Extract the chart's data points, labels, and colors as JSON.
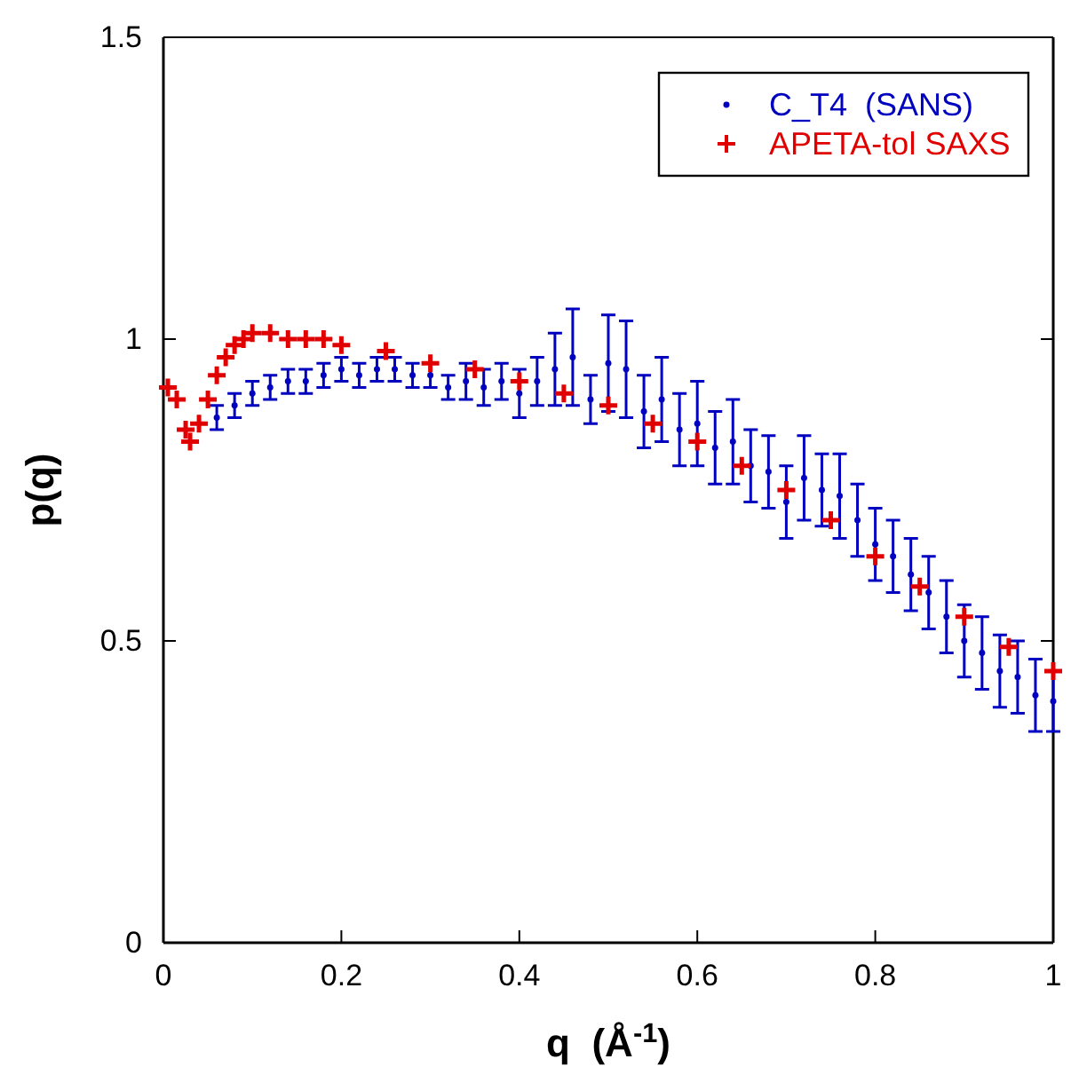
{
  "chart_data": {
    "type": "scatter",
    "xlabel": "q  (Å$^{-1}$)",
    "ylabel": "p(q)",
    "xlim": [
      0,
      1
    ],
    "ylim": [
      0,
      1.5
    ],
    "xticks": [
      0,
      0.2,
      0.4,
      0.6,
      0.8,
      1
    ],
    "yticks": [
      0,
      0.5,
      1,
      1.5
    ],
    "grid": false,
    "legend": "top right",
    "series": [
      {
        "name": "C_T4  (SANS)",
        "color": "#0000c0",
        "marker": "circle",
        "x": [
          0.06,
          0.08,
          0.1,
          0.12,
          0.14,
          0.16,
          0.18,
          0.2,
          0.22,
          0.24,
          0.26,
          0.28,
          0.3,
          0.32,
          0.34,
          0.36,
          0.38,
          0.4,
          0.42,
          0.44,
          0.46,
          0.48,
          0.5,
          0.52,
          0.54,
          0.56,
          0.58,
          0.6,
          0.62,
          0.64,
          0.66,
          0.68,
          0.7,
          0.72,
          0.74,
          0.76,
          0.78,
          0.8,
          0.82,
          0.84,
          0.86,
          0.88,
          0.9,
          0.92,
          0.94,
          0.96,
          0.98,
          1.0
        ],
        "values": [
          0.87,
          0.89,
          0.91,
          0.92,
          0.93,
          0.93,
          0.94,
          0.95,
          0.94,
          0.95,
          0.95,
          0.94,
          0.94,
          0.92,
          0.93,
          0.92,
          0.93,
          0.91,
          0.93,
          0.95,
          0.97,
          0.9,
          0.96,
          0.95,
          0.88,
          0.9,
          0.85,
          0.86,
          0.82,
          0.83,
          0.79,
          0.78,
          0.73,
          0.77,
          0.75,
          0.74,
          0.7,
          0.66,
          0.64,
          0.61,
          0.58,
          0.54,
          0.5,
          0.48,
          0.45,
          0.44,
          0.41,
          0.4
        ],
        "errors": [
          0.02,
          0.02,
          0.02,
          0.02,
          0.02,
          0.02,
          0.02,
          0.02,
          0.02,
          0.02,
          0.02,
          0.02,
          0.02,
          0.02,
          0.03,
          0.03,
          0.03,
          0.04,
          0.04,
          0.06,
          0.08,
          0.04,
          0.08,
          0.08,
          0.06,
          0.07,
          0.06,
          0.07,
          0.06,
          0.07,
          0.06,
          0.06,
          0.06,
          0.07,
          0.06,
          0.07,
          0.06,
          0.06,
          0.06,
          0.06,
          0.06,
          0.06,
          0.06,
          0.06,
          0.06,
          0.06,
          0.06,
          0.05
        ]
      },
      {
        "name": "APETA-tol SAXS",
        "color": "#e00000",
        "marker": "cross",
        "x": [
          0.005,
          0.015,
          0.025,
          0.03,
          0.04,
          0.05,
          0.06,
          0.07,
          0.08,
          0.09,
          0.1,
          0.12,
          0.14,
          0.16,
          0.18,
          0.2,
          0.25,
          0.3,
          0.35,
          0.4,
          0.45,
          0.5,
          0.55,
          0.6,
          0.65,
          0.7,
          0.75,
          0.8,
          0.85,
          0.9,
          0.95,
          1.0
        ],
        "values": [
          0.92,
          0.9,
          0.85,
          0.83,
          0.86,
          0.9,
          0.94,
          0.97,
          0.99,
          1.0,
          1.01,
          1.01,
          1.0,
          1.0,
          1.0,
          0.99,
          0.98,
          0.96,
          0.95,
          0.93,
          0.91,
          0.89,
          0.86,
          0.83,
          0.79,
          0.75,
          0.7,
          0.64,
          0.59,
          0.54,
          0.49,
          0.45
        ]
      }
    ]
  }
}
